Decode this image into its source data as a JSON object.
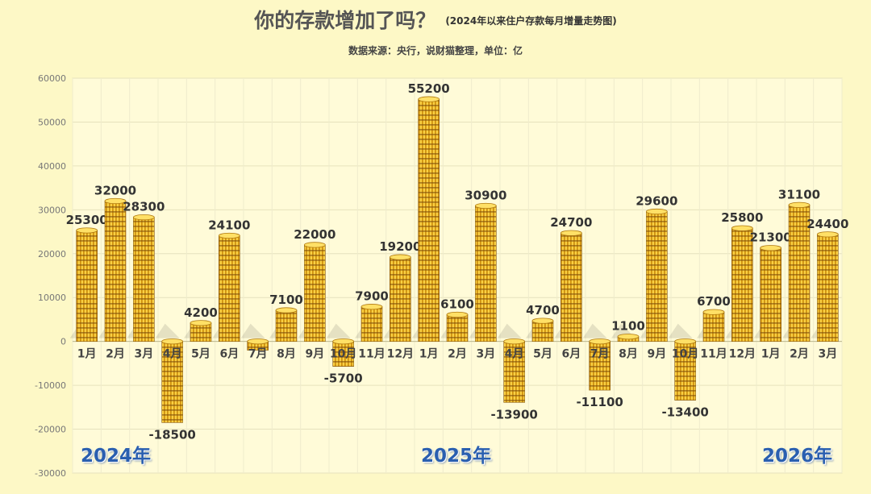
{
  "header": {
    "title": "你的存款增加了吗？",
    "subtitle": "(2024年以来住户存款每月增量走势图)",
    "source": "数据来源：央行，说财猫整理，单位：亿"
  },
  "year_labels": [
    "2024年",
    "2025年",
    "2026年"
  ],
  "colors": {
    "background": "#fdf8c6",
    "plot_bg": "#fffbd8",
    "coin_gold": "#f2b817",
    "coin_stripe": "#8a5a10"
  },
  "chart_data": {
    "type": "bar",
    "title": "你的存款增加了吗？",
    "subtitle": "(2024年以来住户存款每月增量走势图)",
    "ylim": [
      -30000,
      60000
    ],
    "y_ticks": [
      "60000",
      "50000",
      "40000",
      "30000",
      "20000",
      "10000",
      "0",
      "-10000",
      "-20000",
      "-30000"
    ],
    "categories": [
      "1月",
      "2月",
      "3月",
      "4月",
      "5月",
      "6月",
      "7月",
      "8月",
      "9月",
      "10月",
      "11月",
      "12月",
      "1月",
      "2月",
      "3月",
      "4月",
      "5月",
      "6月",
      "7月",
      "8月",
      "9月",
      "10月",
      "11月",
      "12月",
      "1月",
      "2月",
      "3月"
    ],
    "values": [
      25300,
      32000,
      28300,
      -18500,
      4200,
      24100,
      -2000,
      7100,
      22000,
      -5700,
      7900,
      19200,
      55200,
      6100,
      30900,
      -13900,
      4700,
      24700,
      -11100,
      1100,
      29600,
      -13400,
      6700,
      25800,
      21300,
      31100,
      24400
    ],
    "data_labels": [
      "25300",
      "32000",
      "28300",
      "-18500",
      "4200",
      "24100",
      "",
      "7100",
      "22000",
      "-5700",
      "7900",
      "19200",
      "55200",
      "6100",
      "30900",
      "-13900",
      "4700",
      "24700",
      "-11100",
      "1100",
      "29600",
      "-13400",
      "6700",
      "25800",
      "21300",
      "31100",
      "24400"
    ],
    "grid": true,
    "legend": "none"
  }
}
